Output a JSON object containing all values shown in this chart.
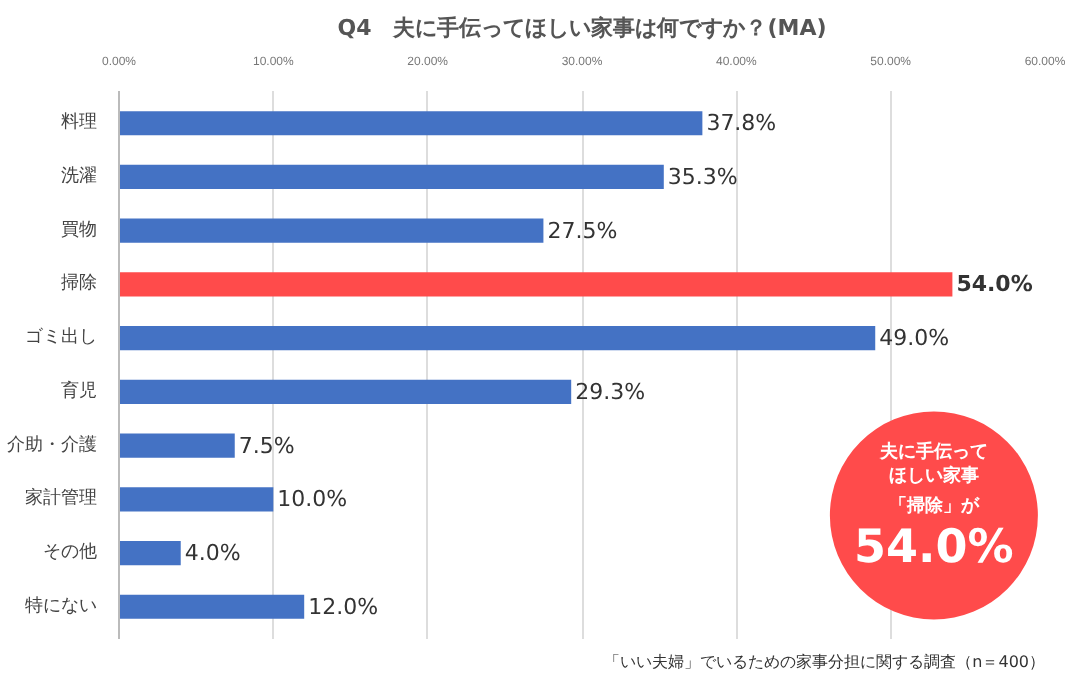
{
  "chart_data": {
    "type": "bar",
    "orientation": "horizontal",
    "title": "Q4　夫に手伝ってほしい家事は何ですか？(MA)",
    "categories": [
      "料理",
      "洗濯",
      "買物",
      "掃除",
      "ゴミ出し",
      "育児",
      "介助・介護",
      "家計管理",
      "その他",
      "特にない"
    ],
    "values": [
      37.8,
      35.3,
      27.5,
      54.0,
      49.0,
      29.3,
      7.5,
      10.0,
      4.0,
      12.0
    ],
    "value_labels": [
      "37.8%",
      "35.3%",
      "27.5%",
      "54.0%",
      "49.0%",
      "29.3%",
      "7.5%",
      "10.0%",
      "4.0%",
      "12.0%"
    ],
    "colors": [
      "#4472c4",
      "#4472c4",
      "#4472c4",
      "#ff4b4b",
      "#4472c4",
      "#4472c4",
      "#4472c4",
      "#4472c4",
      "#4472c4",
      "#4472c4"
    ],
    "xlim": [
      0,
      60
    ],
    "xticks": [
      {
        "value": 0,
        "label": "0.00%"
      },
      {
        "value": 10,
        "label": "10.00%"
      },
      {
        "value": 20,
        "label": "20.00%"
      },
      {
        "value": 30,
        "label": "30.00%"
      },
      {
        "value": 40,
        "label": "40.00%"
      },
      {
        "value": 50,
        "label": "50.00%"
      },
      {
        "value": 60,
        "label": "60.00%"
      }
    ],
    "grid": "x",
    "annotations": [
      "夫に手伝って",
      "ほしい家事",
      "「掃除」が",
      "54.0%",
      "「いい夫婦」でいるための家事分担に関する調査（n＝400）"
    ]
  }
}
